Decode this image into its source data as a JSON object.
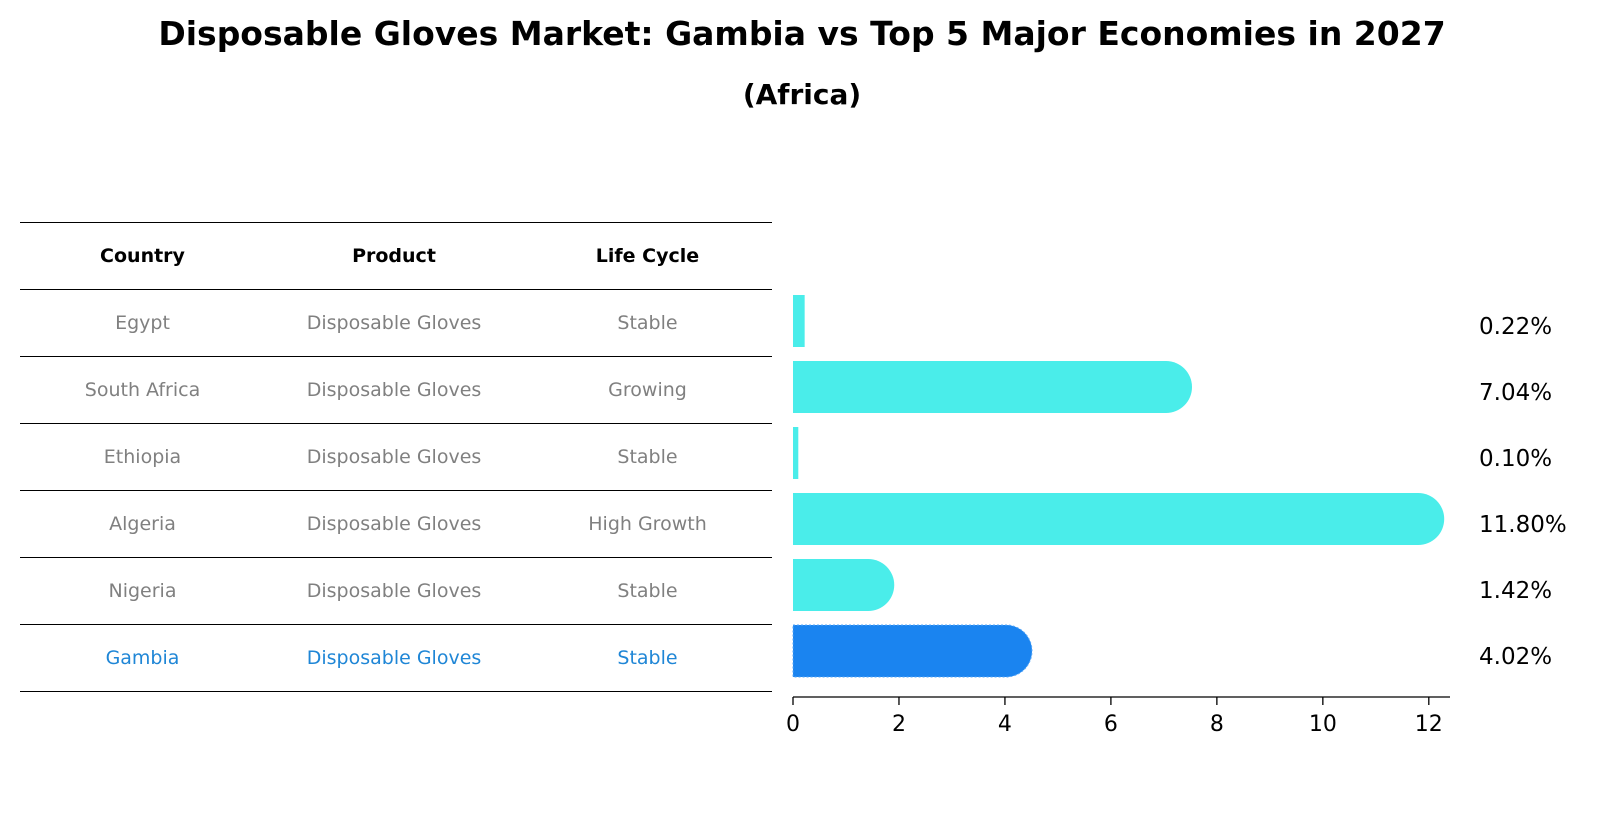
{
  "title": "Disposable Gloves Market: Gambia vs Top 5 Major Economies in 2027",
  "subtitle": "(Africa)",
  "table": {
    "headers": [
      "Country",
      "Product",
      "Life Cycle"
    ],
    "rows": [
      {
        "country": "Egypt",
        "product": "Disposable Gloves",
        "life_cycle": "Stable"
      },
      {
        "country": "South Africa",
        "product": "Disposable Gloves",
        "life_cycle": "Growing"
      },
      {
        "country": "Ethiopia",
        "product": "Disposable Gloves",
        "life_cycle": "Stable"
      },
      {
        "country": "Algeria",
        "product": "Disposable Gloves",
        "life_cycle": "High Growth"
      },
      {
        "country": "Nigeria",
        "product": "Disposable Gloves",
        "life_cycle": "Stable"
      },
      {
        "country": "Gambia",
        "product": "Disposable Gloves",
        "life_cycle": "Stable"
      }
    ]
  },
  "chart_data": {
    "type": "bar",
    "orientation": "horizontal",
    "categories": [
      "Egypt",
      "South Africa",
      "Ethiopia",
      "Algeria",
      "Nigeria",
      "Gambia"
    ],
    "values": [
      0.22,
      7.04,
      0.1,
      11.8,
      1.42,
      4.02
    ],
    "value_labels": [
      "0.22%",
      "7.04%",
      "0.10%",
      "11.80%",
      "1.42%",
      "4.02%"
    ],
    "highlight": "Gambia",
    "xlim": [
      0,
      12.4
    ],
    "xticks": [
      0,
      2,
      4,
      6,
      8,
      10,
      12
    ],
    "colors": {
      "default": "#4aedea",
      "highlight": "#1a84f0"
    },
    "grid": false
  }
}
